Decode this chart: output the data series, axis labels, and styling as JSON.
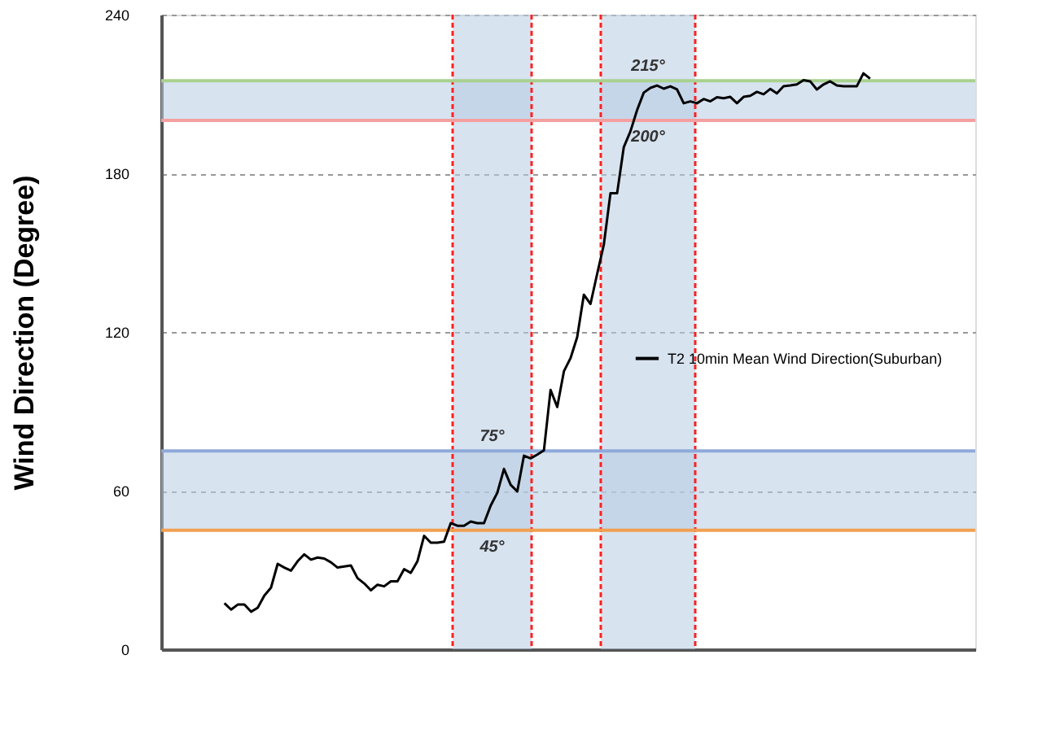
{
  "chart_data": {
    "type": "line",
    "ylabel": "Wind Direction (Degree)",
    "categories": [
      null,
      null,
      null,
      null,
      null,
      null,
      null,
      null,
      null,
      null,
      null,
      null,
      null,
      null,
      null,
      null,
      null,
      null,
      null,
      null,
      null,
      null,
      null,
      null,
      null,
      null,
      null,
      null,
      null,
      null,
      null,
      null,
      null,
      null,
      null,
      null,
      null,
      null,
      null,
      null,
      null,
      null,
      null,
      null,
      null,
      null,
      null,
      null,
      null,
      null,
      null,
      null,
      null,
      null,
      null,
      null,
      null,
      null,
      null,
      null,
      null,
      null,
      null,
      null,
      null,
      null,
      null,
      null,
      null,
      null,
      null,
      null,
      null,
      null,
      null,
      null,
      null,
      null,
      null,
      null,
      null,
      null,
      null,
      null,
      null,
      null,
      null,
      null,
      null,
      null,
      null,
      null,
      null,
      null,
      null,
      null,
      null,
      null
    ],
    "ylim": [
      0,
      240
    ],
    "yticks": [
      0,
      60,
      120,
      180,
      240
    ],
    "grid": "y",
    "legend": "right",
    "marker": "none",
    "line_style": "solid",
    "series": [
      {
        "name": "T2 10min Mean Wind Direction(Suburban)",
        "color": "#000000",
        "values": [
          17.4,
          15.0,
          16.9,
          16.9,
          14.2,
          15.7,
          20.3,
          23.3,
          32.3,
          30.9,
          29.7,
          33.3,
          35.9,
          33.9,
          34.7,
          34.3,
          32.9,
          30.9,
          31.3,
          31.7,
          26.9,
          24.9,
          22.3,
          24.4,
          23.8,
          25.7,
          25.7,
          30.3,
          28.9,
          33.3,
          42.9,
          40.3,
          40.3,
          40.7,
          47.7,
          46.7,
          46.7,
          48.3,
          47.7,
          47.7,
          54.3,
          59.2,
          68.2,
          62.2,
          59.7,
          73.2,
          72.2,
          73.6,
          75.2,
          98.1,
          91.6,
          105.1,
          110.1,
          118.1,
          134.1,
          130.6,
          142.0,
          153.0,
          172.5,
          172.5,
          189.9,
          195.9,
          203.9,
          210.5,
          212.3,
          213.2,
          212.0,
          212.9,
          211.7,
          206.5,
          207.2,
          206.5,
          208.1,
          207.2,
          208.8,
          208.4,
          208.9,
          206.5,
          208.9,
          209.3,
          210.8,
          209.9,
          211.9,
          210.2,
          212.9,
          213.2,
          213.6,
          215.2,
          214.8,
          211.7,
          213.6,
          214.8,
          213.2,
          212.9,
          212.9,
          212.9,
          217.8,
          215.8
        ]
      }
    ],
    "bands": [
      {
        "axis": "y",
        "from": 45,
        "to": 75,
        "color": "#b8cce4"
      },
      {
        "axis": "y",
        "from": 200,
        "to": 215,
        "color": "#b8cce4"
      }
    ],
    "ref_lines": [
      {
        "axis": "y",
        "value": 45,
        "color": "#f0a050",
        "line_style": "solid"
      },
      {
        "axis": "y",
        "value": 75,
        "color": "#8eaadb",
        "line_style": "solid"
      },
      {
        "axis": "y",
        "value": 200,
        "color": "#f4a0a0",
        "line_style": "solid"
      },
      {
        "axis": "y",
        "value": 215,
        "color": "#a9d18e",
        "line_style": "solid"
      }
    ],
    "annotations": [
      {
        "text": "75°",
        "y": 75
      },
      {
        "text": "45°",
        "y": 45
      },
      {
        "text": "215°",
        "y": 215
      },
      {
        "text": "200°",
        "y": 200
      }
    ]
  }
}
